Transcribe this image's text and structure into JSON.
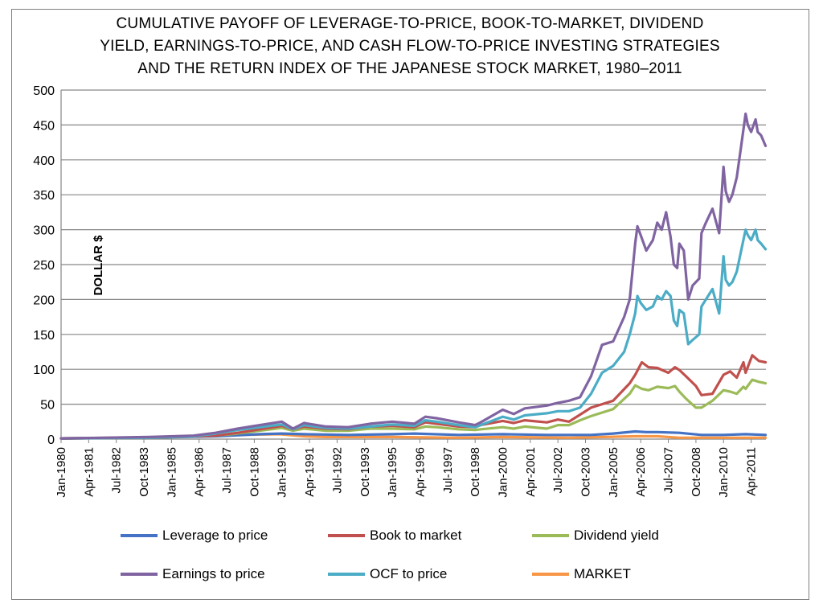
{
  "chart_data": {
    "type": "line",
    "title_lines": [
      "CUMULATIVE PAYOFF OF LEVERAGE-TO-PRICE, BOOK-TO-MARKET, DIVIDEND",
      "YIELD, EARNINGS-TO-PRICE, AND CASH FLOW-TO-PRICE INVESTING STRATEGIES",
      "AND THE RETURN INDEX OF THE JAPANESE STOCK MARKET, 1980–2011"
    ],
    "ylabel": "DOLLAR $",
    "xlabel": "",
    "ylim": [
      0,
      500
    ],
    "yticks": [
      0,
      50,
      100,
      150,
      200,
      250,
      300,
      350,
      400,
      450,
      500
    ],
    "grid": true,
    "legend_position": "bottom",
    "xlim": [
      1980.0,
      2011.92
    ],
    "categories": [
      "Jan-1980",
      "Apr-1981",
      "Jul-1982",
      "Oct-1983",
      "Jan-1985",
      "Apr-1986",
      "Jul-1987",
      "Oct-1988",
      "Jan-1990",
      "Apr-1991",
      "Jul-1992",
      "Oct-1993",
      "Jan-1995",
      "Apr-1996",
      "Jul-1997",
      "Oct-1998",
      "Jan-2000",
      "Apr-2001",
      "Jul-2002",
      "Oct-2003",
      "Jan-2005",
      "Apr-2006",
      "Jul-2007",
      "Oct-2008",
      "Jan-2010",
      "Apr-2011"
    ],
    "category_x": [
      1980.0,
      1981.25,
      1982.5,
      1983.75,
      1985.0,
      1986.25,
      1987.5,
      1988.75,
      1990.0,
      1991.25,
      1992.5,
      1993.75,
      1995.0,
      1996.25,
      1997.5,
      1998.75,
      2000.0,
      2001.25,
      2002.5,
      2003.75,
      2005.0,
      2006.25,
      2007.5,
      2008.75,
      2010.0,
      2011.25
    ],
    "series": [
      {
        "name": "Leverage to price",
        "color": "#4472c4",
        "x": [
          1980,
          1984,
          1987,
          1989,
          1990,
          1991,
          1993,
          1995,
          1996,
          1998,
          2000,
          2002,
          2003,
          2004,
          2005,
          2006,
          2006.5,
          2007,
          2008,
          2009,
          2010,
          2011,
          2011.9
        ],
        "y": [
          1,
          2,
          4,
          7,
          8,
          7,
          6,
          7,
          8,
          6,
          7,
          6,
          6,
          6,
          8,
          11,
          10,
          10,
          9,
          6,
          6,
          7,
          6
        ]
      },
      {
        "name": "Book to market",
        "color": "#c0504d",
        "x": [
          1980,
          1984,
          1987,
          1988,
          1989,
          1990,
          1990.5,
          1991,
          1992,
          1993,
          1994,
          1995,
          1996,
          1996.5,
          1997,
          1998,
          1998.75,
          1999,
          2000,
          2000.5,
          2001,
          2002,
          2002.5,
          2003,
          2003.5,
          2004,
          2005,
          2005.75,
          2006,
          2006.3,
          2006.6,
          2007,
          2007.5,
          2007.8,
          2008,
          2008.3,
          2008.75,
          2009,
          2009.5,
          2010,
          2010.3,
          2010.6,
          2010.9,
          2011,
          2011.3,
          2011.6,
          2011.9
        ],
        "y": [
          1,
          2,
          5,
          9,
          14,
          19,
          14,
          18,
          15,
          14,
          18,
          19,
          17,
          24,
          22,
          18,
          17,
          20,
          26,
          23,
          27,
          24,
          28,
          25,
          35,
          45,
          55,
          80,
          92,
          110,
          103,
          102,
          95,
          103,
          99,
          90,
          76,
          63,
          65,
          92,
          97,
          88,
          110,
          95,
          120,
          112,
          110
        ]
      },
      {
        "name": "Dividend yield",
        "color": "#9bbb59",
        "x": [
          1980,
          1984,
          1987,
          1988,
          1989,
          1990,
          1990.5,
          1991,
          1992,
          1993,
          1994,
          1995,
          1996,
          1996.5,
          1997,
          1998,
          1998.75,
          1999,
          2000,
          2000.5,
          2001,
          2002,
          2002.5,
          2003,
          2003.5,
          2004,
          2005,
          2005.75,
          2006,
          2006.3,
          2006.6,
          2007,
          2007.5,
          2007.8,
          2008,
          2008.3,
          2008.75,
          2009,
          2009.5,
          2010,
          2010.3,
          2010.6,
          2010.9,
          2011,
          2011.3,
          2011.6,
          2011.9
        ],
        "y": [
          1,
          2,
          5,
          8,
          12,
          16,
          12,
          15,
          12,
          12,
          15,
          15,
          14,
          18,
          17,
          14,
          13,
          14,
          17,
          15,
          18,
          15,
          20,
          20,
          27,
          33,
          43,
          65,
          77,
          72,
          70,
          75,
          73,
          76,
          68,
          58,
          45,
          45,
          55,
          70,
          68,
          65,
          75,
          72,
          85,
          82,
          80
        ]
      },
      {
        "name": "Earnings to price",
        "color": "#8064a2",
        "x": [
          1980,
          1984,
          1986,
          1987,
          1988,
          1989,
          1990,
          1990.5,
          1991,
          1992,
          1993,
          1994,
          1995,
          1996,
          1996.5,
          1997,
          1998,
          1998.75,
          1999,
          2000,
          2000.5,
          2001,
          2002,
          2002.5,
          2003,
          2003.5,
          2004,
          2004.5,
          2005,
          2005.5,
          2005.75,
          2006,
          2006.1,
          2006.25,
          2006.5,
          2006.8,
          2007,
          2007.2,
          2007.4,
          2007.6,
          2007.75,
          2007.9,
          2008,
          2008.2,
          2008.4,
          2008.6,
          2008.9,
          2009,
          2009.2,
          2009.5,
          2009.8,
          2010,
          2010.1,
          2010.25,
          2010.4,
          2010.6,
          2010.8,
          2011,
          2011.1,
          2011.25,
          2011.45,
          2011.55,
          2011.7,
          2011.9
        ],
        "y": [
          1,
          3,
          5,
          9,
          15,
          20,
          25,
          15,
          23,
          18,
          17,
          22,
          25,
          22,
          32,
          30,
          24,
          20,
          24,
          42,
          36,
          44,
          48,
          52,
          55,
          60,
          90,
          135,
          140,
          175,
          200,
          280,
          305,
          292,
          270,
          285,
          310,
          300,
          325,
          290,
          250,
          245,
          280,
          270,
          200,
          220,
          230,
          295,
          310,
          330,
          295,
          390,
          355,
          340,
          350,
          375,
          420,
          466,
          450,
          440,
          458,
          440,
          435,
          420
        ]
      },
      {
        "name": "OCF to price",
        "color": "#4bacc6",
        "x": [
          1980,
          1984,
          1986,
          1987,
          1988,
          1989,
          1990,
          1990.5,
          1991,
          1992,
          1993,
          1994,
          1995,
          1996,
          1996.5,
          1997,
          1998,
          1998.75,
          1999,
          2000,
          2000.5,
          2001,
          2002,
          2002.5,
          2003,
          2003.5,
          2004,
          2004.5,
          2005,
          2005.5,
          2005.75,
          2006,
          2006.1,
          2006.25,
          2006.5,
          2006.8,
          2007,
          2007.2,
          2007.4,
          2007.6,
          2007.75,
          2007.9,
          2008,
          2008.2,
          2008.4,
          2008.6,
          2008.9,
          2009,
          2009.2,
          2009.5,
          2009.8,
          2010,
          2010.1,
          2010.25,
          2010.4,
          2010.6,
          2010.8,
          2011,
          2011.1,
          2011.25,
          2011.45,
          2011.55,
          2011.7,
          2011.9
        ],
        "y": [
          1,
          2,
          4,
          8,
          13,
          17,
          21,
          14,
          20,
          16,
          15,
          18,
          21,
          19,
          27,
          25,
          20,
          17,
          20,
          32,
          28,
          34,
          37,
          40,
          40,
          45,
          65,
          95,
          105,
          125,
          150,
          180,
          205,
          195,
          185,
          190,
          205,
          200,
          212,
          205,
          170,
          162,
          185,
          180,
          136,
          142,
          150,
          190,
          200,
          215,
          180,
          262,
          228,
          220,
          225,
          240,
          270,
          300,
          292,
          285,
          300,
          285,
          280,
          272
        ]
      },
      {
        "name": "MARKET",
        "color": "#f79646",
        "x": [
          1980,
          1985,
          1988,
          1989.9,
          1991,
          1992,
          1995,
          1998,
          2000,
          2003,
          2006,
          2007,
          2008,
          2009,
          2011,
          2011.9
        ],
        "y": [
          1,
          3,
          6,
          7,
          4,
          3,
          3,
          2,
          3,
          2,
          4,
          4,
          2,
          2,
          2,
          2
        ]
      }
    ]
  }
}
